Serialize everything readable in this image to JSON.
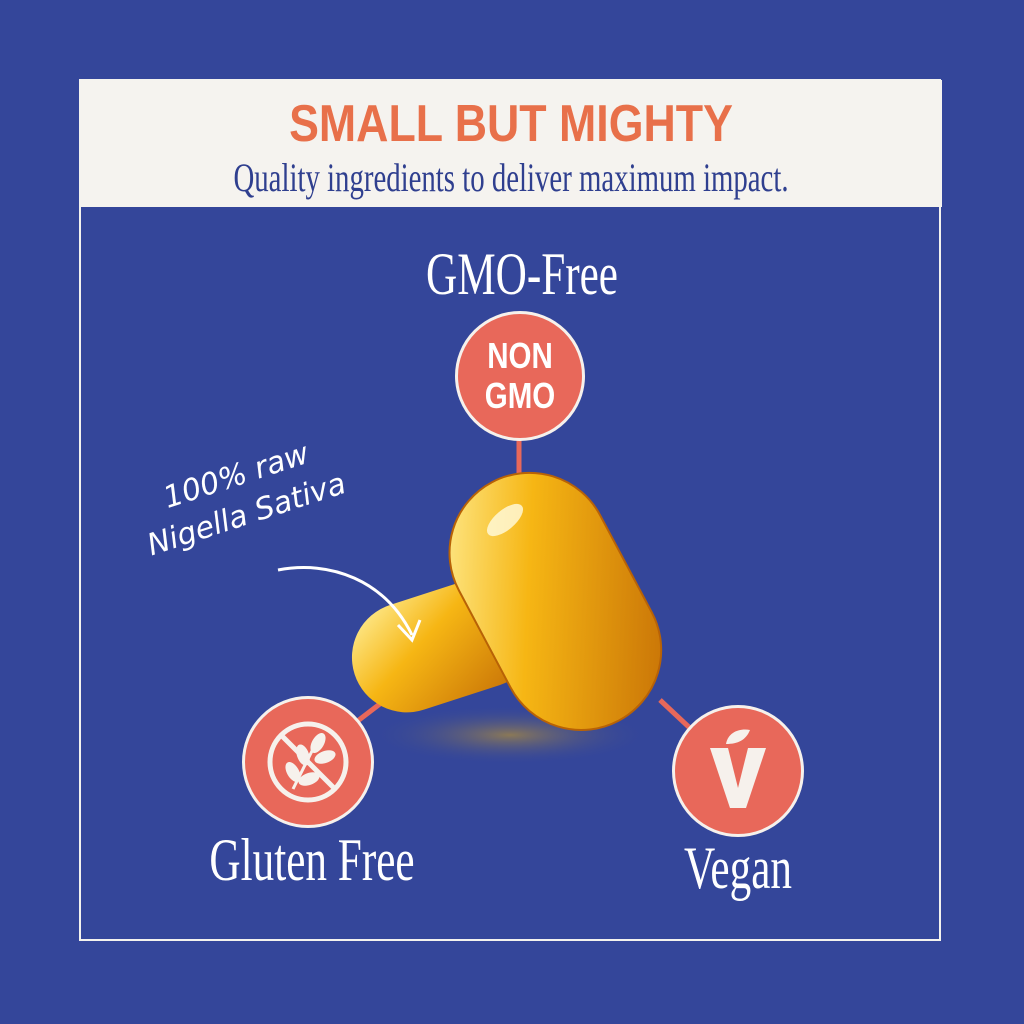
{
  "header": {
    "title": "SMALL BUT MIGHTY",
    "subtitle": "Quality ingredients to deliver maximum impact."
  },
  "features": {
    "gmo": {
      "label": "GMO-Free",
      "badge_line1": "NON",
      "badge_line2": "GMO",
      "icon": "non-gmo-badge"
    },
    "gluten": {
      "label": "Gluten Free",
      "icon": "no-wheat-icon"
    },
    "vegan": {
      "label": "Vegan",
      "icon": "vegan-leaf-v-icon"
    }
  },
  "annotation": {
    "line1": "100% raw",
    "line2": "Nigella Sativa"
  },
  "colors": {
    "background": "#34469a",
    "accent": "#e8685a",
    "title": "#e8704a",
    "header_bg": "#f5f3ef"
  }
}
